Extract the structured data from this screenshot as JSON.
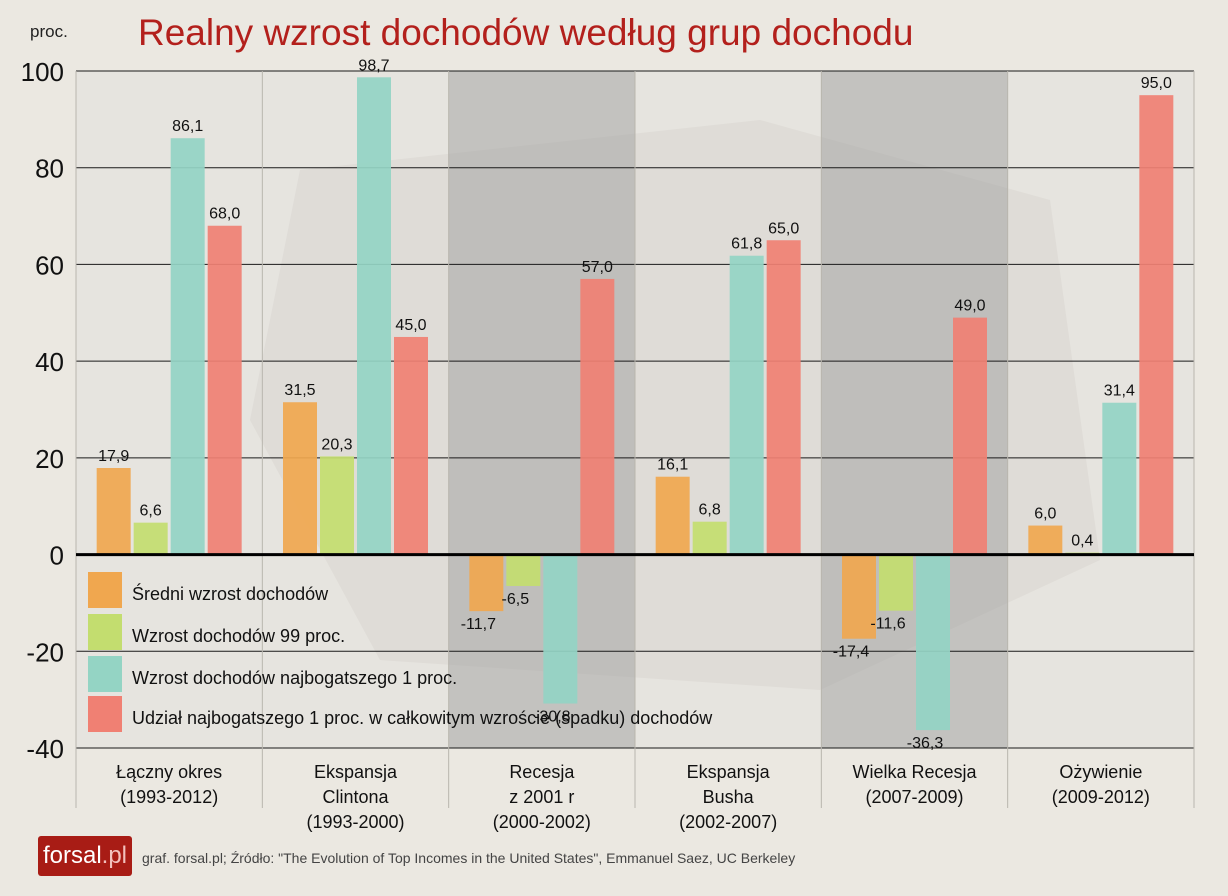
{
  "title": "Realny wzrost dochodów według grup dochodu",
  "unit_label": "proc.",
  "footer": "graf. forsal.pl;   Źródło: \"The Evolution of Top Incomes in the United States\", Emmanuel Saez, UC Berkeley",
  "logo": {
    "main": "forsal",
    "suffix": ".pl"
  },
  "colors": {
    "orange": "#f0a74f",
    "green": "#c3dd6f",
    "teal": "#94d4c4",
    "red": "#f08073",
    "shade": "#9a9a9a"
  },
  "chart_data": {
    "type": "bar",
    "ylim": [
      -40,
      100
    ],
    "yticks": [
      "-40",
      "-20",
      "0",
      "20",
      "40",
      "60",
      "80",
      "100"
    ],
    "yticks_values": [
      -40,
      -20,
      0,
      20,
      40,
      60,
      80,
      100
    ],
    "categories": [
      [
        "Łączny okres",
        "(1993-2012)"
      ],
      [
        "Ekspansja",
        "Clintona",
        "(1993-2000)"
      ],
      [
        "Recesja",
        "z 2001 r",
        "(2000-2002)"
      ],
      [
        "Ekspansja",
        "Busha",
        "(2002-2007)"
      ],
      [
        "Wielka Recesja",
        "(2007-2009)"
      ],
      [
        "Ożywienie",
        "(2009-2012)"
      ]
    ],
    "shaded_categories": [
      2,
      4
    ],
    "series": [
      {
        "name": "Średni wzrost dochodów",
        "color": "#f0a74f",
        "values": [
          17.9,
          31.5,
          -11.7,
          16.1,
          -17.4,
          6.0
        ],
        "labels": [
          "17,9",
          "31,5",
          "-11,7",
          "16,1",
          "-17,4",
          "6,0"
        ]
      },
      {
        "name": "Wzrost dochodów 99 proc.",
        "color": "#c3dd6f",
        "values": [
          6.6,
          20.3,
          -6.5,
          6.8,
          -11.6,
          0.4
        ],
        "labels": [
          "6,6",
          "20,3",
          "-6,5",
          "6,8",
          "-11,6",
          "0,4"
        ]
      },
      {
        "name": "Wzrost dochodów najbogatszego 1 proc.",
        "color": "#94d4c4",
        "values": [
          86.1,
          98.7,
          -30.8,
          61.8,
          -36.3,
          31.4
        ],
        "labels": [
          "86,1",
          "98,7",
          "-30,8",
          "61,8",
          "-36,3",
          "31,4"
        ]
      },
      {
        "name": "Udział najbogatszego 1 proc. w całkowitym wzroście (spadku) dochodów",
        "color": "#f08073",
        "values": [
          68.0,
          45.0,
          57.0,
          65.0,
          49.0,
          95.0
        ],
        "labels": [
          "68,0",
          "45,0",
          "57,0",
          "65,0",
          "49,0",
          "95,0"
        ]
      }
    ],
    "legend_position": "bottom-left",
    "grid": true
  }
}
